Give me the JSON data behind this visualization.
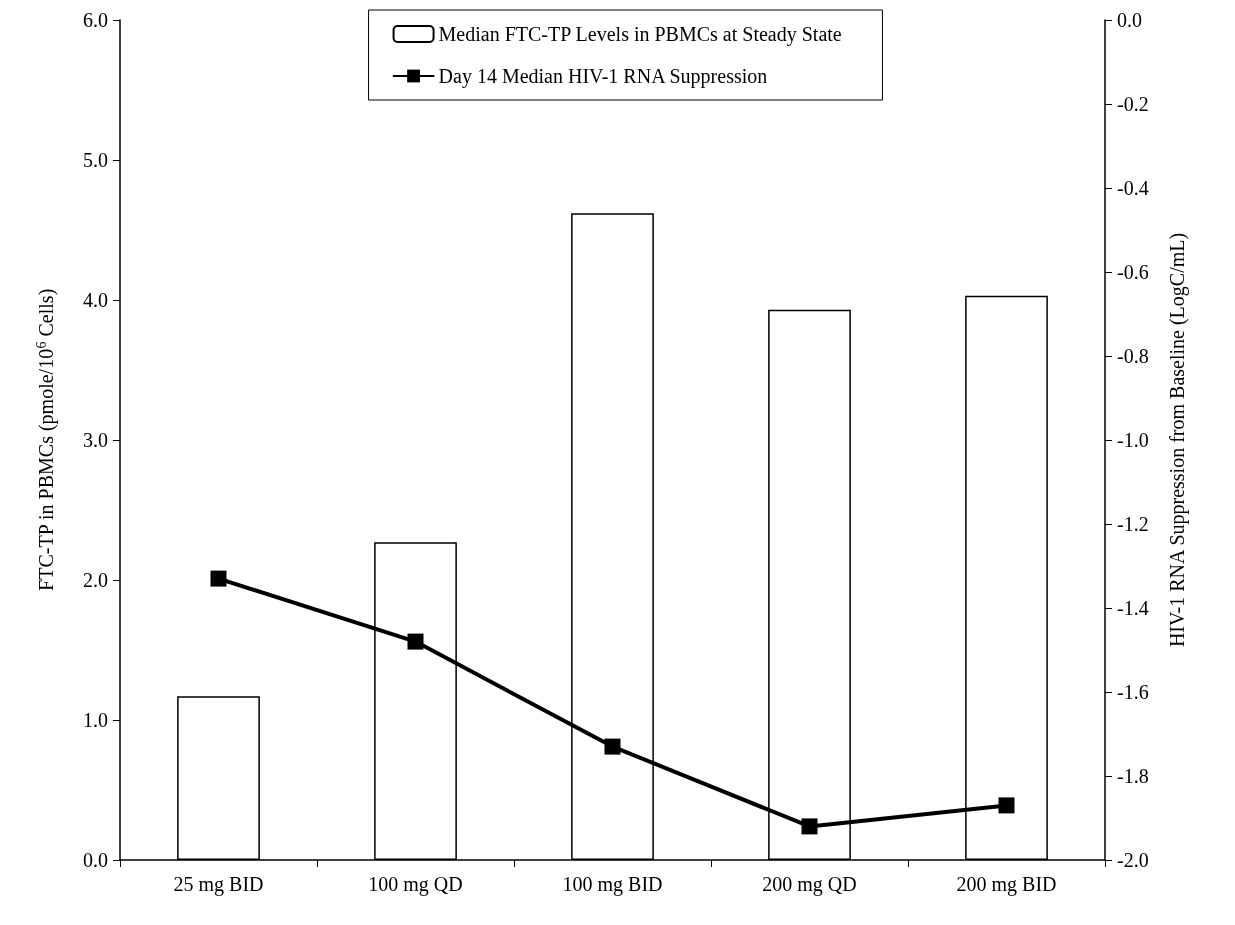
{
  "chart_data": {
    "type": "bar",
    "categories": [
      "25 mg BID",
      "100 mg QD",
      "100 mg BID",
      "200 mg QD",
      "200 mg BID"
    ],
    "ylabel": "FTC-TP in PBMCs (pmole/10$^{6}$ Cells)",
    "y2label": "HIV-1 RNA Suppression from Baseline (LogC/mL)",
    "series": [
      {
        "name": "Median FTC-TP Levels in PBMCs at Steady State",
        "color": "#ffffff",
        "values": [
          1.17,
          2.27,
          4.62,
          3.93,
          4.03
        ]
      },
      {
        "name": "Day 14 Median HIV-1 RNA Suppression",
        "type": "line",
        "axis": "y2",
        "color": "#000000",
        "values": [
          -1.33,
          -1.48,
          -1.73,
          -1.92,
          -1.87
        ]
      }
    ],
    "ylim": [
      0,
      6
    ],
    "yticks": [
      {
        "value": 0,
        "label": "0.0"
      },
      {
        "value": 1,
        "label": "1.0"
      },
      {
        "value": 2,
        "label": "2.0"
      },
      {
        "value": 3,
        "label": "3.0"
      },
      {
        "value": 4,
        "label": "4.0"
      },
      {
        "value": 5,
        "label": "5.0"
      },
      {
        "value": 6,
        "label": "6.0"
      }
    ],
    "y2lim": [
      -2,
      0
    ],
    "y2ticks": [
      {
        "value": -2,
        "label": "-2.0"
      },
      {
        "value": -1.8,
        "label": "-1.8"
      },
      {
        "value": -1.6,
        "label": "-1.6"
      },
      {
        "value": -1.4,
        "label": "-1.4"
      },
      {
        "value": -1.2,
        "label": "-1.2"
      },
      {
        "value": -1,
        "label": "-1.0"
      },
      {
        "value": -0.8,
        "label": "-0.8"
      },
      {
        "value": -0.6,
        "label": "-0.6"
      },
      {
        "value": -0.4,
        "label": "-0.4"
      },
      {
        "value": -0.2,
        "label": "-0.2"
      },
      {
        "value": 0,
        "label": "0.0"
      }
    ],
    "grid": false,
    "legend": "top",
    "marker": "square",
    "line_style": "solid"
  }
}
